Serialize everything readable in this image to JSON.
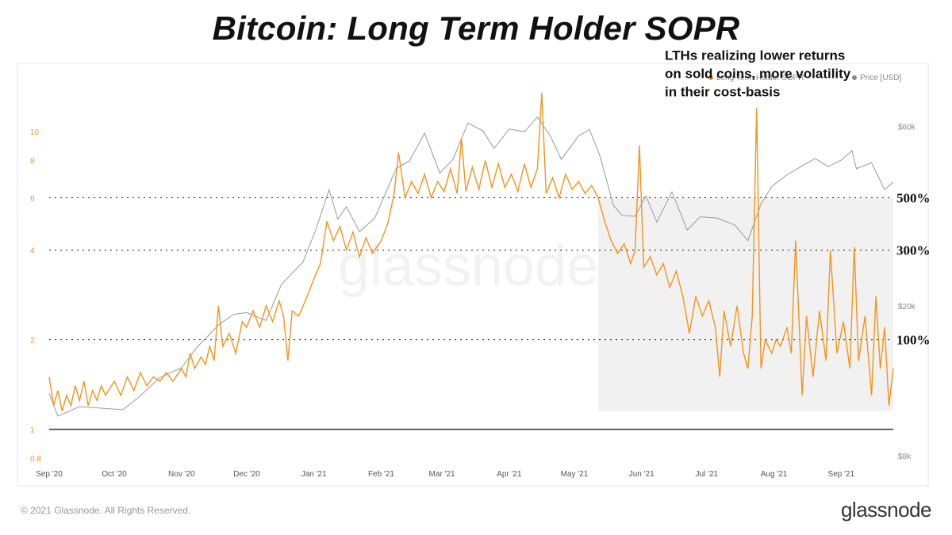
{
  "title": "Bitcoin: Long Term Holder SOPR",
  "footer": {
    "copyright": "© 2021 Glassnode. All Rights Reserved.",
    "brand": "glassnode"
  },
  "watermark": "glassnode",
  "colors": {
    "sopr": "#F7931A",
    "price": "#9a9a9a",
    "highlight_box": "#f1f1f1",
    "baseline": "#333333"
  },
  "chart_data": {
    "type": "line",
    "title": "Bitcoin: Long Term Holder SOPR",
    "legend": {
      "placement": "top-right",
      "items": [
        {
          "name": "Long Term Holder SOPR",
          "color": "#F7931A"
        },
        {
          "name": "Price [USD]",
          "color": "#9a9a9a"
        }
      ]
    },
    "x_axis": {
      "type": "date",
      "range": [
        "2020-09-01",
        "2021-09-25"
      ],
      "ticks": [
        {
          "label": "Sep '20",
          "date": "2020-09-01"
        },
        {
          "label": "Oct '20",
          "date": "2020-10-01"
        },
        {
          "label": "Nov '20",
          "date": "2020-11-01"
        },
        {
          "label": "Dec '20",
          "date": "2020-12-01"
        },
        {
          "label": "Jan '21",
          "date": "2021-01-01"
        },
        {
          "label": "Feb '21",
          "date": "2021-02-01"
        },
        {
          "label": "Mar '21",
          "date": "2021-03-01"
        },
        {
          "label": "Apr '21",
          "date": "2021-04-01"
        },
        {
          "label": "May '21",
          "date": "2021-05-01"
        },
        {
          "label": "Jun '21",
          "date": "2021-06-01"
        },
        {
          "label": "Jul '21",
          "date": "2021-07-01"
        },
        {
          "label": "Aug '21",
          "date": "2021-08-01"
        },
        {
          "label": "Sep '21",
          "date": "2021-09-01"
        }
      ]
    },
    "y_left": {
      "scale": "log",
      "range": [
        0.8,
        15
      ],
      "ticks": [
        {
          "label": "0.8",
          "value": 0.8
        },
        {
          "label": "1",
          "value": 1
        },
        {
          "label": "2",
          "value": 2
        },
        {
          "label": "4",
          "value": 4
        },
        {
          "label": "6",
          "value": 6
        },
        {
          "label": "8",
          "value": 8
        },
        {
          "label": "10",
          "value": 10
        }
      ]
    },
    "y_right": {
      "scale": "log",
      "range": [
        8000,
        80000
      ],
      "ticks": [
        {
          "label": "$8k",
          "value": 8000
        },
        {
          "label": "$20k",
          "value": 20000
        },
        {
          "label": "$60k",
          "value": 60000
        }
      ]
    },
    "reference_lines": [
      {
        "label": "500%",
        "value": 6
      },
      {
        "label": "300%",
        "value": 4
      },
      {
        "label": "100%",
        "value": 2
      }
    ],
    "baseline": {
      "value": 1
    },
    "highlight_region": {
      "x_start": "2021-05-12",
      "x_end": "2021-09-25",
      "y_low": 1.15,
      "y_high": 6
    },
    "annotation": {
      "lines": [
        "LTHs realizing lower returns",
        "on sold coins, more volatility",
        "in their cost-basis"
      ],
      "date": "2021-08-01",
      "value": 11
    },
    "series": [
      {
        "name": "Long Term Holder SOPR",
        "axis": "left",
        "color": "#F7931A",
        "points": [
          [
            "2020-09-01",
            1.5
          ],
          [
            "2020-09-03",
            1.2
          ],
          [
            "2020-09-05",
            1.35
          ],
          [
            "2020-09-07",
            1.15
          ],
          [
            "2020-09-09",
            1.3
          ],
          [
            "2020-09-11",
            1.2
          ],
          [
            "2020-09-13",
            1.4
          ],
          [
            "2020-09-15",
            1.25
          ],
          [
            "2020-09-17",
            1.45
          ],
          [
            "2020-09-19",
            1.2
          ],
          [
            "2020-09-21",
            1.35
          ],
          [
            "2020-09-23",
            1.25
          ],
          [
            "2020-09-25",
            1.4
          ],
          [
            "2020-09-27",
            1.3
          ],
          [
            "2020-10-01",
            1.45
          ],
          [
            "2020-10-04",
            1.3
          ],
          [
            "2020-10-07",
            1.5
          ],
          [
            "2020-10-10",
            1.35
          ],
          [
            "2020-10-13",
            1.55
          ],
          [
            "2020-10-16",
            1.4
          ],
          [
            "2020-10-19",
            1.5
          ],
          [
            "2020-10-22",
            1.45
          ],
          [
            "2020-10-25",
            1.55
          ],
          [
            "2020-10-28",
            1.45
          ],
          [
            "2020-11-01",
            1.6
          ],
          [
            "2020-11-03",
            1.5
          ],
          [
            "2020-11-05",
            1.8
          ],
          [
            "2020-11-07",
            1.6
          ],
          [
            "2020-11-10",
            1.75
          ],
          [
            "2020-11-12",
            1.65
          ],
          [
            "2020-11-14",
            1.9
          ],
          [
            "2020-11-16",
            1.7
          ],
          [
            "2020-11-18",
            2.6
          ],
          [
            "2020-11-20",
            1.9
          ],
          [
            "2020-11-23",
            2.1
          ],
          [
            "2020-11-26",
            1.8
          ],
          [
            "2020-11-29",
            2.3
          ],
          [
            "2020-12-01",
            2.2
          ],
          [
            "2020-12-04",
            2.5
          ],
          [
            "2020-12-07",
            2.2
          ],
          [
            "2020-12-10",
            2.6
          ],
          [
            "2020-12-13",
            2.3
          ],
          [
            "2020-12-16",
            2.7
          ],
          [
            "2020-12-18",
            2.4
          ],
          [
            "2020-12-20",
            1.7
          ],
          [
            "2020-12-22",
            2.5
          ],
          [
            "2020-12-25",
            2.4
          ],
          [
            "2020-12-28",
            2.7
          ],
          [
            "2021-01-01",
            3.2
          ],
          [
            "2021-01-04",
            3.6
          ],
          [
            "2021-01-07",
            5.0
          ],
          [
            "2021-01-10",
            4.3
          ],
          [
            "2021-01-13",
            4.8
          ],
          [
            "2021-01-16",
            4.0
          ],
          [
            "2021-01-19",
            4.6
          ],
          [
            "2021-01-22",
            3.8
          ],
          [
            "2021-01-25",
            4.4
          ],
          [
            "2021-01-28",
            3.9
          ],
          [
            "2021-02-01",
            4.3
          ],
          [
            "2021-02-04",
            4.9
          ],
          [
            "2021-02-07",
            6.2
          ],
          [
            "2021-02-09",
            8.5
          ],
          [
            "2021-02-12",
            6.0
          ],
          [
            "2021-02-15",
            6.8
          ],
          [
            "2021-02-18",
            6.2
          ],
          [
            "2021-02-21",
            7.2
          ],
          [
            "2021-02-24",
            6.0
          ],
          [
            "2021-02-27",
            6.8
          ],
          [
            "2021-03-02",
            6.3
          ],
          [
            "2021-03-05",
            7.5
          ],
          [
            "2021-03-08",
            6.2
          ],
          [
            "2021-03-10",
            9.5
          ],
          [
            "2021-03-12",
            6.3
          ],
          [
            "2021-03-15",
            7.6
          ],
          [
            "2021-03-18",
            6.4
          ],
          [
            "2021-03-21",
            8.0
          ],
          [
            "2021-03-24",
            6.5
          ],
          [
            "2021-03-27",
            7.8
          ],
          [
            "2021-03-30",
            6.5
          ],
          [
            "2021-04-02",
            7.2
          ],
          [
            "2021-04-05",
            6.3
          ],
          [
            "2021-04-08",
            7.8
          ],
          [
            "2021-04-11",
            6.5
          ],
          [
            "2021-04-14",
            7.5
          ],
          [
            "2021-04-16",
            13.5
          ],
          [
            "2021-04-18",
            6.2
          ],
          [
            "2021-04-21",
            7.0
          ],
          [
            "2021-04-24",
            6.0
          ],
          [
            "2021-04-27",
            7.2
          ],
          [
            "2021-04-30",
            6.4
          ],
          [
            "2021-05-03",
            6.8
          ],
          [
            "2021-05-06",
            6.2
          ],
          [
            "2021-05-09",
            6.6
          ],
          [
            "2021-05-12",
            6.0
          ],
          [
            "2021-05-15",
            5.0
          ],
          [
            "2021-05-18",
            4.3
          ],
          [
            "2021-05-21",
            3.9
          ],
          [
            "2021-05-24",
            4.2
          ],
          [
            "2021-05-27",
            3.6
          ],
          [
            "2021-05-29",
            4.0
          ],
          [
            "2021-05-31",
            9.0
          ],
          [
            "2021-06-02",
            3.5
          ],
          [
            "2021-06-05",
            3.8
          ],
          [
            "2021-06-08",
            3.3
          ],
          [
            "2021-06-11",
            3.6
          ],
          [
            "2021-06-14",
            3.0
          ],
          [
            "2021-06-17",
            3.4
          ],
          [
            "2021-06-20",
            2.8
          ],
          [
            "2021-06-23",
            2.1
          ],
          [
            "2021-06-26",
            2.8
          ],
          [
            "2021-06-29",
            2.4
          ],
          [
            "2021-07-02",
            2.7
          ],
          [
            "2021-07-05",
            2.2
          ],
          [
            "2021-07-07",
            1.5
          ],
          [
            "2021-07-09",
            2.5
          ],
          [
            "2021-07-12",
            1.9
          ],
          [
            "2021-07-15",
            2.6
          ],
          [
            "2021-07-18",
            1.8
          ],
          [
            "2021-07-20",
            1.6
          ],
          [
            "2021-07-22",
            2.4
          ],
          [
            "2021-07-24",
            12.0
          ],
          [
            "2021-07-26",
            1.6
          ],
          [
            "2021-07-28",
            2.0
          ],
          [
            "2021-07-31",
            1.8
          ],
          [
            "2021-08-02",
            2.0
          ],
          [
            "2021-08-04",
            1.9
          ],
          [
            "2021-08-07",
            2.2
          ],
          [
            "2021-08-09",
            1.8
          ],
          [
            "2021-08-11",
            4.3
          ],
          [
            "2021-08-14",
            1.3
          ],
          [
            "2021-08-16",
            2.4
          ],
          [
            "2021-08-19",
            1.5
          ],
          [
            "2021-08-22",
            2.5
          ],
          [
            "2021-08-25",
            1.7
          ],
          [
            "2021-08-27",
            4.0
          ],
          [
            "2021-08-30",
            1.8
          ],
          [
            "2021-09-02",
            2.3
          ],
          [
            "2021-09-05",
            1.6
          ],
          [
            "2021-09-07",
            4.1
          ],
          [
            "2021-09-09",
            1.7
          ],
          [
            "2021-09-12",
            2.4
          ],
          [
            "2021-09-15",
            1.3
          ],
          [
            "2021-09-17",
            2.8
          ],
          [
            "2021-09-19",
            1.6
          ],
          [
            "2021-09-21",
            2.2
          ],
          [
            "2021-09-23",
            1.2
          ],
          [
            "2021-09-25",
            1.6
          ]
        ]
      },
      {
        "name": "Price [USD]",
        "axis": "right",
        "color": "#9a9a9a",
        "points": [
          [
            "2020-09-01",
            11700
          ],
          [
            "2020-09-05",
            10200
          ],
          [
            "2020-09-15",
            10800
          ],
          [
            "2020-09-25",
            10700
          ],
          [
            "2020-10-05",
            10600
          ],
          [
            "2020-10-12",
            11400
          ],
          [
            "2020-10-22",
            12900
          ],
          [
            "2020-11-01",
            13700
          ],
          [
            "2020-11-08",
            15500
          ],
          [
            "2020-11-18",
            17800
          ],
          [
            "2020-11-25",
            19000
          ],
          [
            "2020-12-01",
            19200
          ],
          [
            "2020-12-10",
            18300
          ],
          [
            "2020-12-17",
            22800
          ],
          [
            "2020-12-27",
            26200
          ],
          [
            "2021-01-02",
            32000
          ],
          [
            "2021-01-08",
            40700
          ],
          [
            "2021-01-12",
            34000
          ],
          [
            "2021-01-16",
            36700
          ],
          [
            "2021-01-22",
            31500
          ],
          [
            "2021-01-29",
            34200
          ],
          [
            "2021-02-08",
            46400
          ],
          [
            "2021-02-14",
            48500
          ],
          [
            "2021-02-21",
            57500
          ],
          [
            "2021-02-28",
            45100
          ],
          [
            "2021-03-06",
            48900
          ],
          [
            "2021-03-13",
            61200
          ],
          [
            "2021-03-20",
            58300
          ],
          [
            "2021-03-25",
            52400
          ],
          [
            "2021-04-01",
            59000
          ],
          [
            "2021-04-08",
            58000
          ],
          [
            "2021-04-14",
            63500
          ],
          [
            "2021-04-20",
            56500
          ],
          [
            "2021-04-25",
            49000
          ],
          [
            "2021-05-03",
            56600
          ],
          [
            "2021-05-08",
            58800
          ],
          [
            "2021-05-13",
            49700
          ],
          [
            "2021-05-19",
            37000
          ],
          [
            "2021-05-23",
            34800
          ],
          [
            "2021-05-29",
            34600
          ],
          [
            "2021-06-03",
            39200
          ],
          [
            "2021-06-08",
            33400
          ],
          [
            "2021-06-15",
            40200
          ],
          [
            "2021-06-22",
            31800
          ],
          [
            "2021-06-28",
            34500
          ],
          [
            "2021-07-06",
            34200
          ],
          [
            "2021-07-14",
            32800
          ],
          [
            "2021-07-20",
            29800
          ],
          [
            "2021-07-26",
            37300
          ],
          [
            "2021-07-31",
            41500
          ],
          [
            "2021-08-07",
            44600
          ],
          [
            "2021-08-14",
            47100
          ],
          [
            "2021-08-20",
            49300
          ],
          [
            "2021-08-26",
            46900
          ],
          [
            "2021-09-01",
            48800
          ],
          [
            "2021-09-06",
            51700
          ],
          [
            "2021-09-08",
            46300
          ],
          [
            "2021-09-15",
            48000
          ],
          [
            "2021-09-21",
            40700
          ],
          [
            "2021-09-25",
            42700
          ]
        ]
      }
    ]
  }
}
